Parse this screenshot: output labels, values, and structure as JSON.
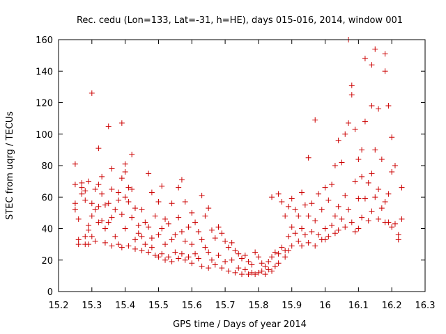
{
  "chart_data": {
    "type": "scatter",
    "title": "Rec. cedu (Lon=133, Lat=-31, h=HE), days 015-016, 2014, window 001",
    "xlabel": "GPS time / Days of year 2014",
    "ylabel": "STEC from uqrg / TECUs",
    "xlim": [
      15.2,
      16.3
    ],
    "ylim": [
      0,
      160
    ],
    "xticks": [
      "15.2",
      "15.3",
      "15.4",
      "15.5",
      "15.6",
      "15.7",
      "15.8",
      "15.9",
      "16",
      "16.1",
      "16.2",
      "16.3"
    ],
    "yticks": [
      "0",
      "20",
      "40",
      "60",
      "80",
      "100",
      "120",
      "140",
      "160"
    ],
    "grid": false,
    "marker": "plus",
    "color": "#cc0000",
    "points": [
      [
        15.25,
        81
      ],
      [
        15.25,
        68
      ],
      [
        15.25,
        56
      ],
      [
        15.25,
        52
      ],
      [
        15.26,
        33
      ],
      [
        15.26,
        30
      ],
      [
        15.26,
        46
      ],
      [
        15.27,
        62
      ],
      [
        15.27,
        66
      ],
      [
        15.27,
        69
      ],
      [
        15.28,
        64
      ],
      [
        15.28,
        58
      ],
      [
        15.28,
        35
      ],
      [
        15.28,
        30
      ],
      [
        15.29,
        70
      ],
      [
        15.29,
        42
      ],
      [
        15.29,
        39
      ],
      [
        15.29,
        30
      ],
      [
        15.3,
        126
      ],
      [
        15.3,
        56
      ],
      [
        15.3,
        48
      ],
      [
        15.3,
        35
      ],
      [
        15.31,
        65
      ],
      [
        15.31,
        52
      ],
      [
        15.31,
        32
      ],
      [
        15.32,
        91
      ],
      [
        15.32,
        68
      ],
      [
        15.32,
        54
      ],
      [
        15.32,
        44
      ],
      [
        15.33,
        73
      ],
      [
        15.33,
        62
      ],
      [
        15.33,
        45
      ],
      [
        15.34,
        55
      ],
      [
        15.34,
        40
      ],
      [
        15.34,
        31
      ],
      [
        15.35,
        105
      ],
      [
        15.35,
        56
      ],
      [
        15.35,
        44
      ],
      [
        15.36,
        78
      ],
      [
        15.36,
        65
      ],
      [
        15.36,
        47
      ],
      [
        15.36,
        29
      ],
      [
        15.37,
        52
      ],
      [
        15.37,
        35
      ],
      [
        15.38,
        63
      ],
      [
        15.38,
        58
      ],
      [
        15.38,
        30
      ],
      [
        15.39,
        107
      ],
      [
        15.39,
        72
      ],
      [
        15.39,
        49
      ],
      [
        15.39,
        28
      ],
      [
        15.4,
        81
      ],
      [
        15.4,
        76
      ],
      [
        15.4,
        60
      ],
      [
        15.4,
        40
      ],
      [
        15.41,
        66
      ],
      [
        15.41,
        57
      ],
      [
        15.41,
        29
      ],
      [
        15.42,
        87
      ],
      [
        15.42,
        65
      ],
      [
        15.42,
        47
      ],
      [
        15.43,
        53
      ],
      [
        15.43,
        33
      ],
      [
        15.43,
        27
      ],
      [
        15.44,
        42
      ],
      [
        15.44,
        37
      ],
      [
        15.45,
        52
      ],
      [
        15.45,
        35
      ],
      [
        15.45,
        26
      ],
      [
        15.46,
        44
      ],
      [
        15.46,
        30
      ],
      [
        15.47,
        75
      ],
      [
        15.47,
        41
      ],
      [
        15.47,
        25
      ],
      [
        15.48,
        63
      ],
      [
        15.48,
        34
      ],
      [
        15.48,
        28
      ],
      [
        15.49,
        48
      ],
      [
        15.49,
        23
      ],
      [
        15.5,
        57
      ],
      [
        15.5,
        36
      ],
      [
        15.5,
        22
      ],
      [
        15.51,
        67
      ],
      [
        15.51,
        40
      ],
      [
        15.51,
        24
      ],
      [
        15.52,
        46
      ],
      [
        15.52,
        30
      ],
      [
        15.52,
        20
      ],
      [
        15.53,
        43
      ],
      [
        15.53,
        22
      ],
      [
        15.54,
        56
      ],
      [
        15.54,
        33
      ],
      [
        15.54,
        19
      ],
      [
        15.55,
        36
      ],
      [
        15.55,
        25
      ],
      [
        15.56,
        66
      ],
      [
        15.56,
        47
      ],
      [
        15.56,
        21
      ],
      [
        15.57,
        71
      ],
      [
        15.57,
        38
      ],
      [
        15.57,
        24
      ],
      [
        15.58,
        57
      ],
      [
        15.58,
        32
      ],
      [
        15.58,
        20
      ],
      [
        15.59,
        41
      ],
      [
        15.59,
        22
      ],
      [
        15.6,
        50
      ],
      [
        15.6,
        30
      ],
      [
        15.6,
        18
      ],
      [
        15.61,
        44
      ],
      [
        15.61,
        24
      ],
      [
        15.62,
        38
      ],
      [
        15.62,
        21
      ],
      [
        15.63,
        61
      ],
      [
        15.63,
        33
      ],
      [
        15.63,
        16
      ],
      [
        15.64,
        48
      ],
      [
        15.64,
        28
      ],
      [
        15.65,
        53
      ],
      [
        15.65,
        25
      ],
      [
        15.65,
        15
      ],
      [
        15.66,
        39
      ],
      [
        15.66,
        20
      ],
      [
        15.67,
        34
      ],
      [
        15.67,
        17
      ],
      [
        15.68,
        41
      ],
      [
        15.68,
        23
      ],
      [
        15.69,
        37
      ],
      [
        15.69,
        15
      ],
      [
        15.7,
        32
      ],
      [
        15.7,
        19
      ],
      [
        15.71,
        28
      ],
      [
        15.71,
        13
      ],
      [
        15.72,
        31
      ],
      [
        15.72,
        20
      ],
      [
        15.73,
        26
      ],
      [
        15.73,
        12
      ],
      [
        15.74,
        24
      ],
      [
        15.74,
        15
      ],
      [
        15.75,
        21
      ],
      [
        15.75,
        11
      ],
      [
        15.76,
        23
      ],
      [
        15.76,
        14
      ],
      [
        15.77,
        19
      ],
      [
        15.77,
        11
      ],
      [
        15.78,
        17
      ],
      [
        15.78,
        12
      ],
      [
        15.79,
        25
      ],
      [
        15.79,
        11
      ],
      [
        15.8,
        22
      ],
      [
        15.8,
        12
      ],
      [
        15.81,
        18
      ],
      [
        15.81,
        13
      ],
      [
        15.82,
        16
      ],
      [
        15.82,
        11
      ],
      [
        15.83,
        19
      ],
      [
        15.83,
        14
      ],
      [
        15.84,
        60
      ],
      [
        15.84,
        22
      ],
      [
        15.84,
        13
      ],
      [
        15.85,
        25
      ],
      [
        15.85,
        16
      ],
      [
        15.86,
        62
      ],
      [
        15.86,
        24
      ],
      [
        15.86,
        18
      ],
      [
        15.87,
        57
      ],
      [
        15.87,
        28
      ],
      [
        15.88,
        48
      ],
      [
        15.88,
        26
      ],
      [
        15.88,
        22
      ],
      [
        15.89,
        54
      ],
      [
        15.89,
        35
      ],
      [
        15.89,
        26
      ],
      [
        15.9,
        59
      ],
      [
        15.9,
        41
      ],
      [
        15.9,
        29
      ],
      [
        15.91,
        52
      ],
      [
        15.91,
        37
      ],
      [
        15.92,
        48
      ],
      [
        15.92,
        32
      ],
      [
        15.93,
        63
      ],
      [
        15.93,
        40
      ],
      [
        15.93,
        29
      ],
      [
        15.94,
        55
      ],
      [
        15.94,
        36
      ],
      [
        15.95,
        85
      ],
      [
        15.95,
        48
      ],
      [
        15.95,
        31
      ],
      [
        15.96,
        56
      ],
      [
        15.96,
        38
      ],
      [
        15.97,
        109
      ],
      [
        15.97,
        45
      ],
      [
        15.97,
        29
      ],
      [
        15.98,
        62
      ],
      [
        15.98,
        36
      ],
      [
        15.99,
        52
      ],
      [
        15.99,
        33
      ],
      [
        16.0,
        66
      ],
      [
        16.0,
        40
      ],
      [
        16.0,
        33
      ],
      [
        16.01,
        58
      ],
      [
        16.01,
        35
      ],
      [
        16.02,
        68
      ],
      [
        16.02,
        42
      ],
      [
        16.03,
        80
      ],
      [
        16.03,
        48
      ],
      [
        16.03,
        37
      ],
      [
        16.04,
        96
      ],
      [
        16.04,
        54
      ],
      [
        16.04,
        39
      ],
      [
        16.05,
        82
      ],
      [
        16.05,
        46
      ],
      [
        16.06,
        100
      ],
      [
        16.06,
        61
      ],
      [
        16.06,
        41
      ],
      [
        16.07,
        160
      ],
      [
        16.07,
        107
      ],
      [
        16.07,
        52
      ],
      [
        16.08,
        131
      ],
      [
        16.08,
        125
      ],
      [
        16.08,
        44
      ],
      [
        16.09,
        103
      ],
      [
        16.09,
        70
      ],
      [
        16.09,
        38
      ],
      [
        16.1,
        84
      ],
      [
        16.1,
        59
      ],
      [
        16.1,
        40
      ],
      [
        16.11,
        90
      ],
      [
        16.11,
        73
      ],
      [
        16.11,
        47
      ],
      [
        16.12,
        148
      ],
      [
        16.12,
        108
      ],
      [
        16.12,
        59
      ],
      [
        16.13,
        69
      ],
      [
        16.13,
        45
      ],
      [
        16.14,
        144
      ],
      [
        16.14,
        118
      ],
      [
        16.14,
        75
      ],
      [
        16.14,
        51
      ],
      [
        16.15,
        154
      ],
      [
        16.15,
        90
      ],
      [
        16.15,
        60
      ],
      [
        16.16,
        116
      ],
      [
        16.16,
        65
      ],
      [
        16.16,
        46
      ],
      [
        16.17,
        84
      ],
      [
        16.17,
        53
      ],
      [
        16.18,
        151
      ],
      [
        16.18,
        140
      ],
      [
        16.18,
        57
      ],
      [
        16.18,
        44
      ],
      [
        16.19,
        118
      ],
      [
        16.19,
        62
      ],
      [
        16.19,
        44
      ],
      [
        16.2,
        98
      ],
      [
        16.2,
        76
      ],
      [
        16.2,
        41
      ],
      [
        16.21,
        80
      ],
      [
        16.21,
        43
      ],
      [
        16.22,
        36
      ],
      [
        16.22,
        33
      ],
      [
        16.23,
        66
      ],
      [
        16.23,
        46
      ]
    ]
  }
}
